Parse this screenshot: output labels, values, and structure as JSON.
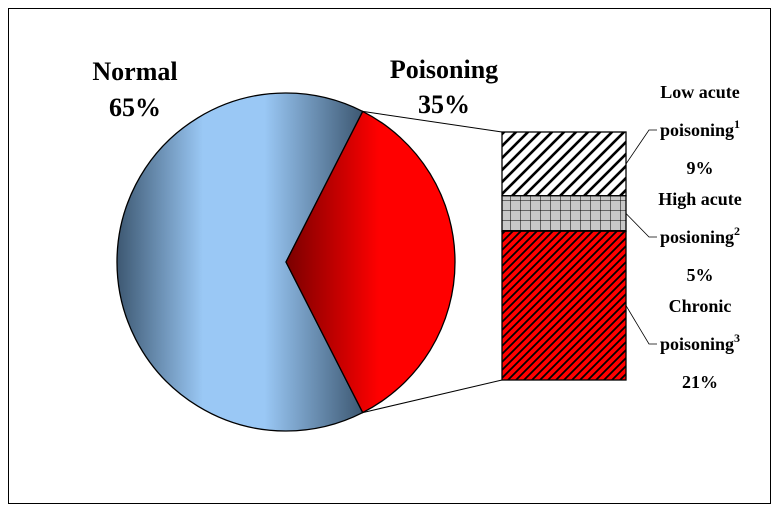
{
  "chart_data": {
    "type": "bar-of-pie",
    "pie": {
      "slices": [
        {
          "name": "Normal",
          "percent_label": "65%",
          "value": 65,
          "color": "#9ac8f5",
          "shade": "#3d5872"
        },
        {
          "name": "Poisoning",
          "percent_label": "35%",
          "value": 35,
          "color": "#ff0000",
          "shade": "#7a0000"
        }
      ]
    },
    "bar": {
      "segments": [
        {
          "label_line1": "Low acute",
          "label_line2": "poisoning",
          "sup": "1",
          "percent_label": "9%",
          "value": 9,
          "pattern": "diag-white"
        },
        {
          "label_line1": "High acute",
          "label_line2": "posioning",
          "sup": "2",
          "percent_label": "5%",
          "value": 5,
          "pattern": "grid-gray"
        },
        {
          "label_line1": "Chronic",
          "label_line2": "poisoning",
          "sup": "3",
          "percent_label": "21%",
          "value": 21,
          "pattern": "diag-red"
        }
      ]
    }
  }
}
